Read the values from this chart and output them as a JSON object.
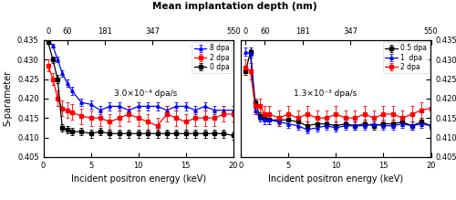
{
  "title_top": "Mean implantation depth (nm)",
  "xlabel": "Incident positron energy (keV)",
  "ylabel": "S-parameter",
  "ylim": [
    0.405,
    0.435
  ],
  "xlim": [
    0,
    20
  ],
  "top_tick_positions": [
    0.5,
    2.5,
    6.5,
    11.5,
    20
  ],
  "top_tick_labels": [
    "0",
    "60",
    "181",
    "347",
    "550"
  ],
  "yticks": [
    0.405,
    0.41,
    0.415,
    0.42,
    0.425,
    0.43,
    0.435
  ],
  "xticks": [
    0,
    5,
    10,
    15,
    20
  ],
  "left_label": "3.0×10⁻⁴ dpa/s",
  "right_label": "1.3×10⁻³ dpa/s",
  "x": [
    0.5,
    1,
    1.5,
    2,
    2.5,
    3,
    4,
    5,
    6,
    7,
    8,
    9,
    10,
    11,
    12,
    13,
    14,
    15,
    16,
    17,
    18,
    19,
    20
  ],
  "left_blue_y": [
    0.435,
    0.4335,
    0.43,
    0.4265,
    0.424,
    0.422,
    0.419,
    0.4185,
    0.417,
    0.418,
    0.418,
    0.417,
    0.418,
    0.418,
    0.418,
    0.417,
    0.418,
    0.418,
    0.417,
    0.418,
    0.417,
    0.417,
    0.417
  ],
  "left_blue_err": [
    0.0005,
    0.0005,
    0.0007,
    0.0008,
    0.001,
    0.001,
    0.001,
    0.001,
    0.001,
    0.001,
    0.001,
    0.001,
    0.001,
    0.001,
    0.001,
    0.001,
    0.001,
    0.001,
    0.001,
    0.001,
    0.001,
    0.001,
    0.001
  ],
  "left_red_y": [
    0.4285,
    0.425,
    0.42,
    0.4175,
    0.417,
    0.4165,
    0.4155,
    0.415,
    0.415,
    0.414,
    0.415,
    0.416,
    0.415,
    0.414,
    0.413,
    0.416,
    0.415,
    0.414,
    0.415,
    0.415,
    0.415,
    0.416,
    0.416
  ],
  "left_red_err": [
    0.0015,
    0.0015,
    0.002,
    0.002,
    0.002,
    0.002,
    0.002,
    0.002,
    0.002,
    0.002,
    0.002,
    0.002,
    0.002,
    0.002,
    0.002,
    0.002,
    0.002,
    0.002,
    0.002,
    0.002,
    0.002,
    0.002,
    0.002
  ],
  "left_black_y": [
    0.4345,
    0.43,
    0.425,
    0.4125,
    0.412,
    0.4115,
    0.4115,
    0.411,
    0.4115,
    0.411,
    0.411,
    0.411,
    0.411,
    0.411,
    0.411,
    0.411,
    0.411,
    0.411,
    0.411,
    0.411,
    0.411,
    0.411,
    0.4105
  ],
  "left_black_err": [
    0.0005,
    0.0008,
    0.001,
    0.001,
    0.001,
    0.001,
    0.001,
    0.001,
    0.001,
    0.001,
    0.001,
    0.001,
    0.001,
    0.001,
    0.001,
    0.001,
    0.001,
    0.001,
    0.001,
    0.001,
    0.001,
    0.001,
    0.001
  ],
  "right_black_y": [
    0.427,
    0.432,
    0.419,
    0.4155,
    0.415,
    0.4145,
    0.4145,
    0.4145,
    0.414,
    0.413,
    0.4135,
    0.4135,
    0.413,
    0.4135,
    0.413,
    0.4135,
    0.413,
    0.4135,
    0.4135,
    0.414,
    0.413,
    0.414,
    0.413
  ],
  "right_black_err": [
    0.001,
    0.001,
    0.001,
    0.001,
    0.001,
    0.001,
    0.001,
    0.001,
    0.001,
    0.001,
    0.001,
    0.001,
    0.001,
    0.001,
    0.001,
    0.001,
    0.001,
    0.001,
    0.001,
    0.001,
    0.001,
    0.001,
    0.001
  ],
  "right_blue_y": [
    0.432,
    0.4315,
    0.417,
    0.415,
    0.4145,
    0.4145,
    0.414,
    0.4135,
    0.413,
    0.412,
    0.4125,
    0.413,
    0.4125,
    0.413,
    0.413,
    0.413,
    0.4135,
    0.413,
    0.413,
    0.4135,
    0.413,
    0.4135,
    0.413
  ],
  "right_blue_err": [
    0.001,
    0.001,
    0.001,
    0.001,
    0.001,
    0.001,
    0.001,
    0.001,
    0.001,
    0.001,
    0.001,
    0.001,
    0.001,
    0.001,
    0.001,
    0.001,
    0.001,
    0.001,
    0.001,
    0.001,
    0.001,
    0.001,
    0.001
  ],
  "right_red_y": [
    0.428,
    0.427,
    0.418,
    0.418,
    0.416,
    0.416,
    0.415,
    0.416,
    0.415,
    0.416,
    0.415,
    0.415,
    0.416,
    0.415,
    0.415,
    0.416,
    0.415,
    0.416,
    0.416,
    0.415,
    0.416,
    0.417,
    0.4175
  ],
  "right_red_err": [
    0.002,
    0.002,
    0.002,
    0.002,
    0.002,
    0.002,
    0.002,
    0.002,
    0.002,
    0.002,
    0.002,
    0.002,
    0.002,
    0.002,
    0.002,
    0.002,
    0.002,
    0.002,
    0.002,
    0.002,
    0.002,
    0.002,
    0.002
  ],
  "left_legend": [
    "8 dpa",
    "2 dpa",
    "0 dpa"
  ],
  "right_legend": [
    "0.5 dpa",
    "1  dpa",
    "2 dpa"
  ]
}
